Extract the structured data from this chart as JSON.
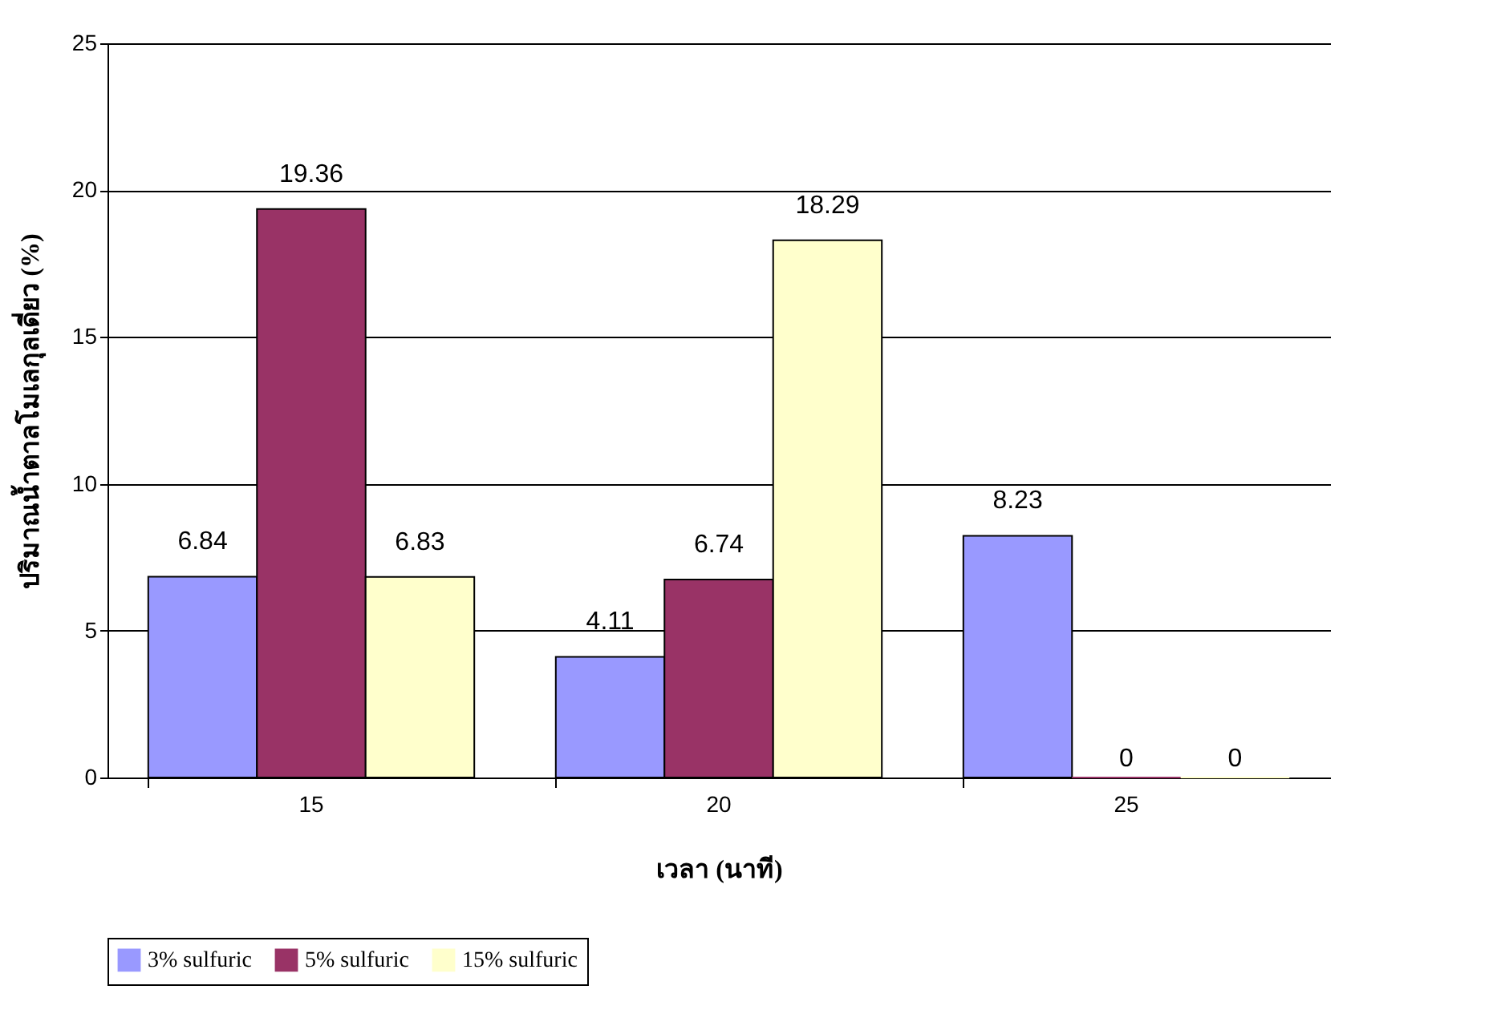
{
  "chart_data": {
    "type": "bar",
    "xlabel": "เวลา (นาที)",
    "ylabel": "ปริมาณน้ำตาลโมเลกุลเดี่ยว (%)",
    "categories": [
      "15",
      "20",
      "25"
    ],
    "series": [
      {
        "name": "3% sulfuric",
        "color": "#9999ff",
        "values": [
          6.84,
          4.11,
          8.23
        ]
      },
      {
        "name": "5% sulfuric",
        "color": "#993366",
        "values": [
          19.36,
          6.74,
          0
        ]
      },
      {
        "name": "15% sulfuric",
        "color": "#ffffcc",
        "values": [
          6.83,
          18.29,
          0
        ]
      }
    ],
    "ylim": [
      0,
      25
    ],
    "yticks": [
      0,
      5,
      10,
      15,
      20,
      25
    ],
    "grid": "y",
    "legend": "bottom",
    "data_labels": true
  }
}
